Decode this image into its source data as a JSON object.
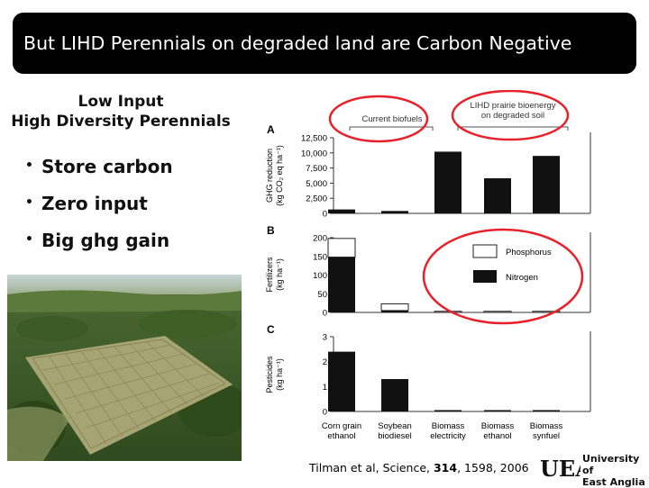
{
  "slide": {
    "title": "But LIHD Perennials on degraded land are Carbon Negative",
    "subtitle_line1": "Low Input",
    "subtitle_line2": "High Diversity Perennials",
    "bullets": [
      "Store carbon",
      "Zero input",
      "Big ghg gain"
    ],
    "citation_prefix": "Tilman et al, Science, ",
    "citation_volume": "314",
    "citation_suffix": ", 1598, 2006",
    "logo_letters": "UEA",
    "logo_line1": "University of",
    "logo_line2": "East Anglia"
  },
  "colors": {
    "title_bg": "#000000",
    "title_text": "#ffffff",
    "bar_fill": "#111111",
    "phosphorus_fill": "#ffffff",
    "highlight_circle": "#e8202a"
  },
  "chart_data": [
    {
      "type": "bar",
      "panel": "A",
      "ylabel": "GHG reduction (kg CO2 eq ha-1)",
      "yticks": [
        "12,500",
        "10,000",
        "7,500",
        "5,000",
        "2,500",
        "0"
      ],
      "ylim": [
        0,
        12500
      ],
      "categories": [
        "Corn grain ethanol",
        "Soybean biodiesel",
        "Biomass electricity",
        "Biomass ethanol",
        "Biomass synfuel"
      ],
      "values": [
        650,
        400,
        10200,
        5800,
        9500
      ],
      "group_labels": [
        "Current biofuels",
        "LIHD prairie bioenergy on degraded soil"
      ]
    },
    {
      "type": "bar",
      "panel": "B",
      "ylabel": "Fertilizers (kg ha-1)",
      "yticks": [
        "200",
        "150",
        "100",
        "50",
        "0"
      ],
      "ylim": [
        0,
        200
      ],
      "categories": [
        "Corn grain ethanol",
        "Soybean biodiesel",
        "Biomass electricity",
        "Biomass ethanol",
        "Biomass synfuel"
      ],
      "series": [
        {
          "name": "Nitrogen",
          "values": [
            148,
            5,
            0,
            0,
            0
          ]
        },
        {
          "name": "Phosphorus",
          "values": [
            50,
            18,
            3,
            3,
            3
          ]
        }
      ],
      "legend": [
        "Phosphorus",
        "Nitrogen"
      ],
      "stacked": true
    },
    {
      "type": "bar",
      "panel": "C",
      "ylabel": "Pesticides (kg ha-1)",
      "yticks": [
        "3",
        "2",
        "1",
        "0"
      ],
      "ylim": [
        0,
        3
      ],
      "categories": [
        "Corn grain ethanol",
        "Soybean biodiesel",
        "Biomass electricity",
        "Biomass ethanol",
        "Biomass synfuel"
      ],
      "values": [
        2.4,
        1.3,
        0.03,
        0.03,
        0.03
      ]
    }
  ],
  "category_labels": [
    [
      "Corn grain",
      "ethanol"
    ],
    [
      "Soybean",
      "biodiesel"
    ],
    [
      "Biomass",
      "electricity"
    ],
    [
      "Biomass",
      "ethanol"
    ],
    [
      "Biomass",
      "synfuel"
    ]
  ]
}
